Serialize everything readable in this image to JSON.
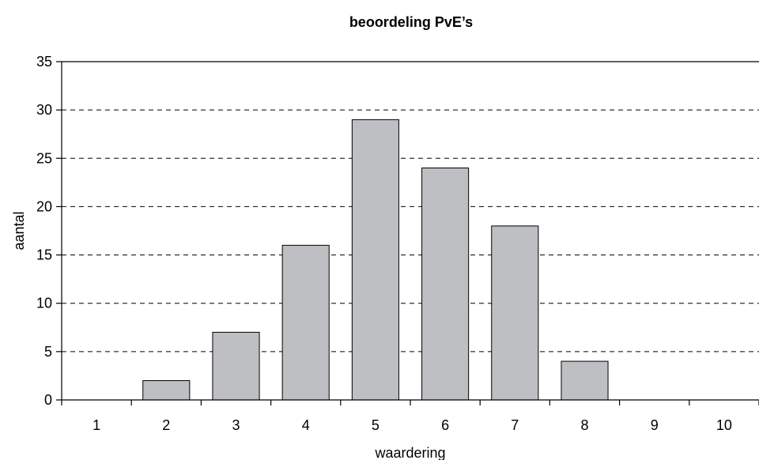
{
  "chart_data": {
    "type": "bar",
    "title": "beoordeling PvE’s",
    "xlabel": "waardering",
    "ylabel": "aantal",
    "categories": [
      "1",
      "2",
      "3",
      "4",
      "5",
      "6",
      "7",
      "8",
      "9",
      "10"
    ],
    "values": [
      0,
      2,
      7,
      16,
      29,
      24,
      18,
      4,
      0,
      0
    ],
    "ylim": [
      0,
      35
    ],
    "yticks": [
      0,
      5,
      10,
      15,
      20,
      25,
      30,
      35
    ],
    "grid": true,
    "legend": "none",
    "colors": {
      "bar": "#bebfc2",
      "outline": "#000000"
    }
  }
}
